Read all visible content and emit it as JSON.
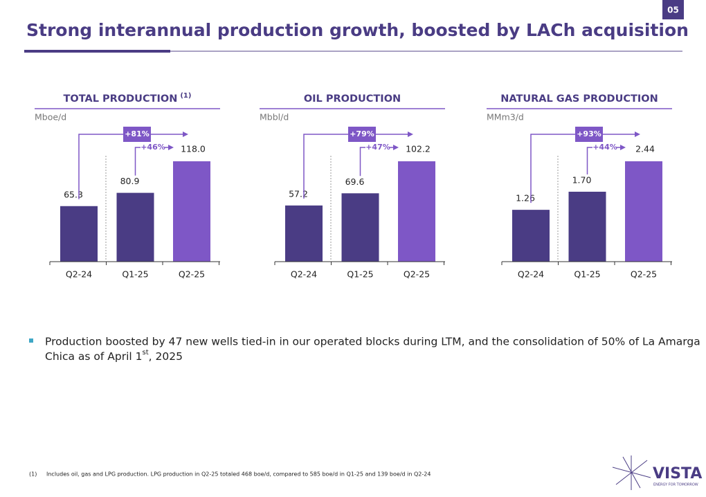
{
  "page_number": "05",
  "title": "Strong interannual production growth, boosted by LACh acquisition",
  "bullet": {
    "text": "Production boosted by 47 new wells tied-in in our operated blocks during LTM, and the consolidation of 50% of La Amarga",
    "text_line2": "Chica as of April 1",
    "sup": "st",
    "text_after": ", 2025"
  },
  "footnote": {
    "marker": "(1)",
    "text": "Includes oil, gas and LPG production. LPG production in Q2-25 totaled 468 boe/d, compared to 585 boe/d in Q1-25 and 139 boe/d in Q2-24"
  },
  "logo": {
    "name": "VISTA",
    "tagline": "ENERGY FOR TOMORROW"
  },
  "chart_data": [
    {
      "type": "bar",
      "title": "TOTAL PRODUCTION",
      "title_note": "(1)",
      "unit": "Mboe/d",
      "categories": [
        "Q2-24",
        "Q1-25",
        "Q2-25"
      ],
      "values": [
        65.3,
        80.9,
        118.0
      ],
      "value_labels": [
        "65.3",
        "80.9",
        "118.0"
      ],
      "colors": [
        "#4a3c84",
        "#4a3c84",
        "#7e57c6"
      ],
      "annotations": {
        "yoy": "+81%",
        "qoq": "+46%"
      }
    },
    {
      "type": "bar",
      "title": "OIL PRODUCTION",
      "unit": "Mbbl/d",
      "categories": [
        "Q2-24",
        "Q1-25",
        "Q2-25"
      ],
      "values": [
        57.2,
        69.6,
        102.2
      ],
      "value_labels": [
        "57.2",
        "69.6",
        "102.2"
      ],
      "colors": [
        "#4a3c84",
        "#4a3c84",
        "#7e57c6"
      ],
      "annotations": {
        "yoy": "+79%",
        "qoq": "+47%"
      }
    },
    {
      "type": "bar",
      "title": "NATURAL GAS PRODUCTION",
      "unit": "MMm3/d",
      "categories": [
        "Q2-24",
        "Q1-25",
        "Q2-25"
      ],
      "values": [
        1.26,
        1.7,
        2.44
      ],
      "value_labels": [
        "1.26",
        "1.70",
        "2.44"
      ],
      "colors": [
        "#4a3c84",
        "#4a3c84",
        "#7e57c6"
      ],
      "annotations": {
        "yoy": "+93%",
        "qoq": "+44%"
      }
    }
  ]
}
